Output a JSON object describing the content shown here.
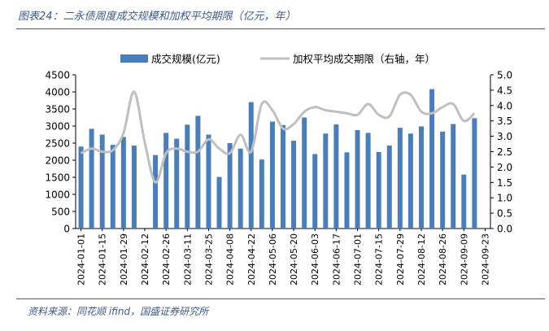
{
  "figure": {
    "title": "图表24：二永债周度成交规模和加权平均期限（亿元，年）",
    "source": "资料来源：同花顺 ifind，国盛证券研究所"
  },
  "chart_data": {
    "type": "bar",
    "categories": [
      "2024-01-01",
      "2024-01-08",
      "2024-01-15",
      "2024-01-22",
      "2024-01-29",
      "2024-02-05",
      "2024-02-12",
      "2024-02-19",
      "2024-02-26",
      "2024-03-04",
      "2024-03-11",
      "2024-03-18",
      "2024-03-25",
      "2024-04-01",
      "2024-04-08",
      "2024-04-15",
      "2024-04-22",
      "2024-04-29",
      "2024-05-06",
      "2024-05-13",
      "2024-05-20",
      "2024-05-27",
      "2024-06-03",
      "2024-06-10",
      "2024-06-17",
      "2024-06-24",
      "2024-07-01",
      "2024-07-08",
      "2024-07-15",
      "2024-07-22",
      "2024-07-29",
      "2024-08-05",
      "2024-08-12",
      "2024-08-19",
      "2024-08-26",
      "2024-09-02",
      "2024-09-09",
      "2024-09-16",
      "2024-09-23"
    ],
    "series": [
      {
        "name": "成交规模(亿元)",
        "axis": "left",
        "type": "bar",
        "color": "#4a7ebb",
        "values": [
          2400,
          2920,
          2750,
          2450,
          2680,
          2430,
          0,
          2150,
          2800,
          2630,
          3040,
          3300,
          2750,
          1510,
          2500,
          2340,
          3700,
          2020,
          3130,
          3030,
          2570,
          3250,
          2180,
          2780,
          3050,
          2230,
          2880,
          2800,
          2240,
          2430,
          2950,
          2780,
          2990,
          4080,
          2840,
          3060,
          1580,
          3230,
          null
        ]
      },
      {
        "name": "加权平均成交期限（右轴，年）",
        "axis": "right",
        "type": "line",
        "color": "#bfbfbf",
        "values": [
          2.45,
          2.6,
          2.5,
          2.55,
          3.1,
          4.45,
          2.8,
          1.5,
          2.45,
          2.6,
          2.5,
          2.5,
          2.9,
          2.6,
          2.45,
          3.05,
          2.5,
          4.05,
          3.85,
          3.25,
          3.4,
          3.8,
          3.95,
          3.85,
          3.8,
          3.75,
          3.7,
          4.05,
          3.7,
          3.65,
          4.35,
          4.35,
          3.8,
          3.75,
          3.95,
          4.05,
          3.5,
          3.75,
          null
        ]
      }
    ],
    "y_left": {
      "min": 0,
      "max": 4500,
      "ticks": [
        0,
        500,
        1000,
        1500,
        2000,
        2500,
        3000,
        3500,
        4000,
        4500
      ]
    },
    "y_right": {
      "min": 0,
      "max": 5,
      "ticks": [
        "0.0",
        "0.5",
        "1.0",
        "1.5",
        "2.0",
        "2.5",
        "3.0",
        "3.5",
        "4.0",
        "4.5",
        "5.0"
      ]
    },
    "legend_position": "top",
    "grid": false
  }
}
